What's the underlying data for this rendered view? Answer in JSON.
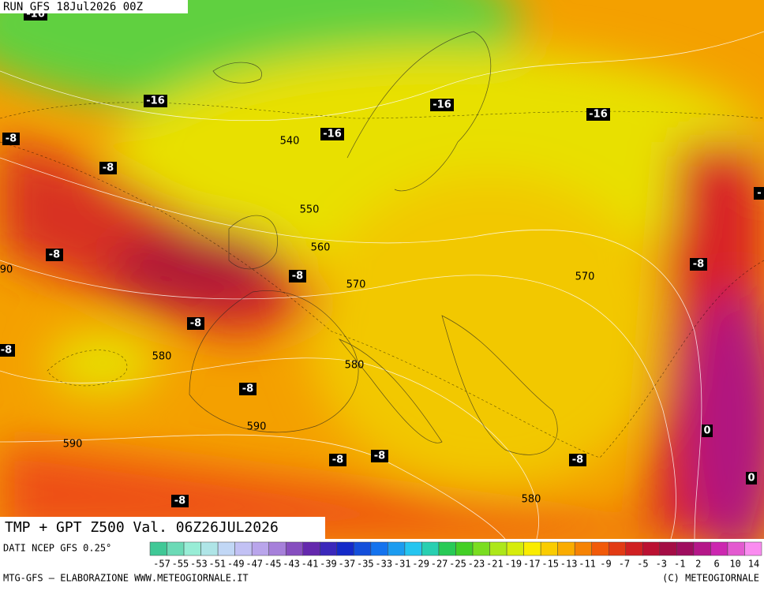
{
  "header": {
    "run": "RUN GFS 18Jul2026 00Z"
  },
  "map": {
    "temperature_labels": [
      "-16",
      "-16",
      "-16",
      "-16",
      "-16",
      "-8",
      "-8",
      "-8",
      "-8",
      "-8",
      "-8",
      "-8",
      "-8",
      "-8",
      "-8",
      "-8",
      "-8",
      "-",
      "0",
      "0"
    ],
    "height_labels": [
      "540",
      "550",
      "560",
      "570",
      "570",
      "580",
      "580",
      "580",
      "590",
      "590",
      "90"
    ],
    "title": "TMP + GPT Z500 Val. 06Z26JUL2026"
  },
  "legend": {
    "source": "DATI NCEP GFS 0.25°",
    "labels": [
      "-57",
      "-55",
      "-53",
      "-51",
      "-49",
      "-47",
      "-45",
      "-43",
      "-41",
      "-39",
      "-37",
      "-35",
      "-33",
      "-31",
      "-29",
      "-27",
      "-25",
      "-23",
      "-21",
      "-19",
      "-17",
      "-15",
      "-13",
      "-11",
      "-9",
      "-7",
      "-5",
      "-3",
      "-1",
      "2",
      "6",
      "10",
      "14"
    ]
  },
  "footer": {
    "credit": "MTG-GFS — ELABORAZIONE WWW.METEOGIORNALE.IT",
    "copyright": "(C) METEOGIORNALE"
  }
}
